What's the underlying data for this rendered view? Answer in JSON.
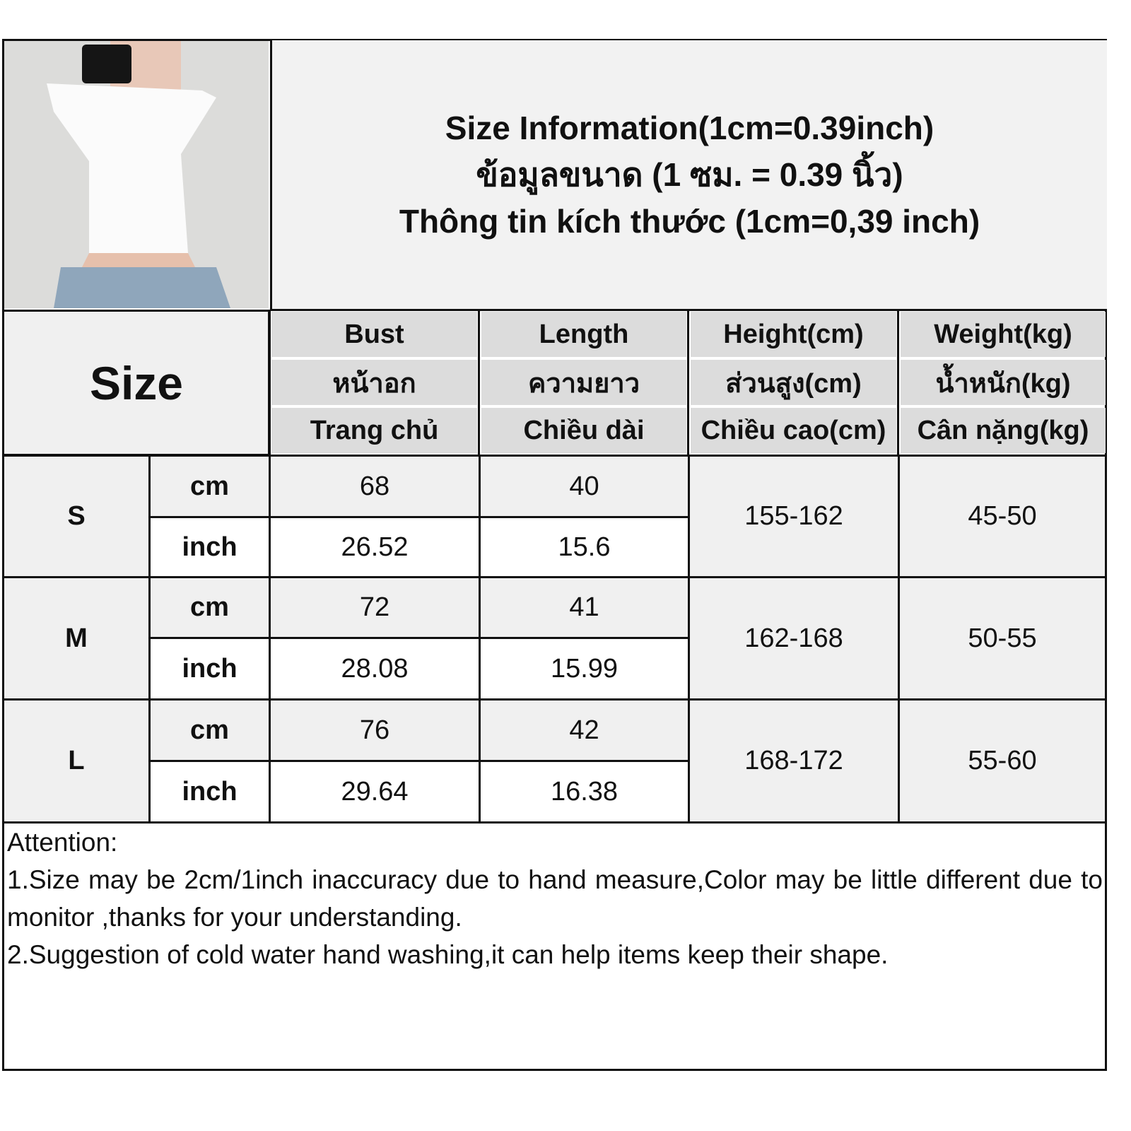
{
  "title": {
    "line1": "Size Information(1cm=0.39inch)",
    "line2": "ข้อมูลขนาด (1 ซม. = 0.39 นิ้ว)",
    "line3": "Thông tin kích thước (1cm=0,39 inch)"
  },
  "size_header": "Size",
  "columns": [
    {
      "en": "Bust",
      "th": "หน้าอก",
      "vi": "Trang chủ"
    },
    {
      "en": "Length",
      "th": "ความยาว",
      "vi": "Chiều dài"
    },
    {
      "en": "Height(cm)",
      "th": "ส่วนสูง(cm)",
      "vi": "Chiều cao(cm)"
    },
    {
      "en": "Weight(kg)",
      "th": "น้ำหนัก(kg)",
      "vi": "Cân nặng(kg)"
    }
  ],
  "units": {
    "cm": "cm",
    "inch": "inch"
  },
  "rows": [
    {
      "size": "S",
      "bust_cm": "68",
      "length_cm": "40",
      "bust_inch": "26.52",
      "length_inch": "15.6",
      "height": "155-162",
      "weight": "45-50"
    },
    {
      "size": "M",
      "bust_cm": "72",
      "length_cm": "41",
      "bust_inch": "28.08",
      "length_inch": "15.99",
      "height": "162-168",
      "weight": "50-55"
    },
    {
      "size": "L",
      "bust_cm": "76",
      "length_cm": "42",
      "bust_inch": "29.64",
      "length_inch": "16.38",
      "height": "168-172",
      "weight": "55-60"
    }
  ],
  "attention": {
    "heading": "Attention:",
    "note1": "1.Size may be 2cm/1inch inaccuracy due to hand measure,Color may be little different due to monitor ,thanks for your understanding.",
    "note2": "2.Suggestion of cold water hand washing,it can help items keep their shape."
  },
  "colors": {
    "header_bg": "#dcdcdc",
    "row_bg": "#f0f0f0",
    "border": "#111111"
  }
}
